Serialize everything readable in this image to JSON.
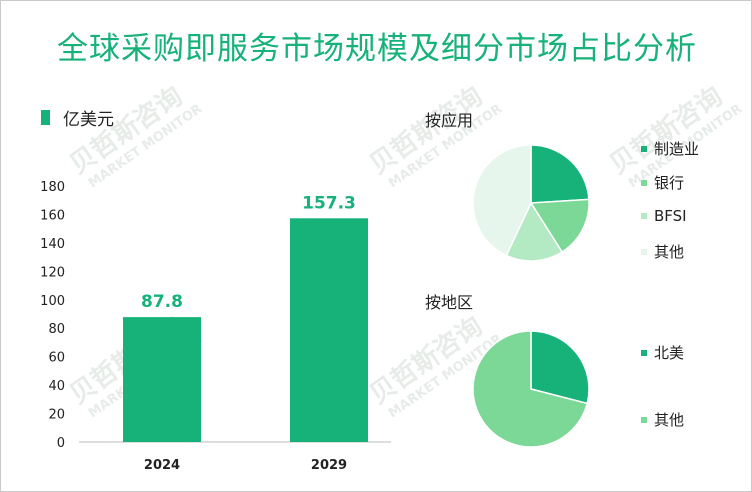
{
  "title": "全球采购即服务市场规模及细分市场占比分析",
  "unit_label": "亿美元",
  "watermark": {
    "cn": "贝哲斯咨询",
    "en": "MARKET MONITOR"
  },
  "colors": {
    "title": "#17b27a",
    "bar": "#17b27a",
    "value_label": "#17b27a"
  },
  "chart_data": [
    {
      "type": "bar",
      "title": "",
      "categories": [
        "2024",
        "2029"
      ],
      "values": [
        87.8,
        157.3
      ],
      "value_labels": [
        "87.8",
        "157.3"
      ],
      "ylim": [
        0,
        180
      ],
      "yticks": [
        0,
        20,
        40,
        60,
        80,
        100,
        120,
        140,
        160,
        180
      ],
      "xlabel": "",
      "ylabel": "",
      "legend": [
        "亿美元"
      ]
    },
    {
      "type": "pie",
      "title": "按应用",
      "labels": [
        "制造业",
        "银行",
        "BFSI",
        "其他"
      ],
      "values": [
        24,
        17,
        16,
        43
      ],
      "colors": [
        "#17b27a",
        "#7bd896",
        "#b3eac4",
        "#e7f6ec"
      ],
      "legend_position": "right"
    },
    {
      "type": "pie",
      "title": "按地区",
      "labels": [
        "北美",
        "其他"
      ],
      "values": [
        29,
        71
      ],
      "colors": [
        "#17b27a",
        "#7bd896"
      ],
      "legend_position": "right"
    }
  ]
}
